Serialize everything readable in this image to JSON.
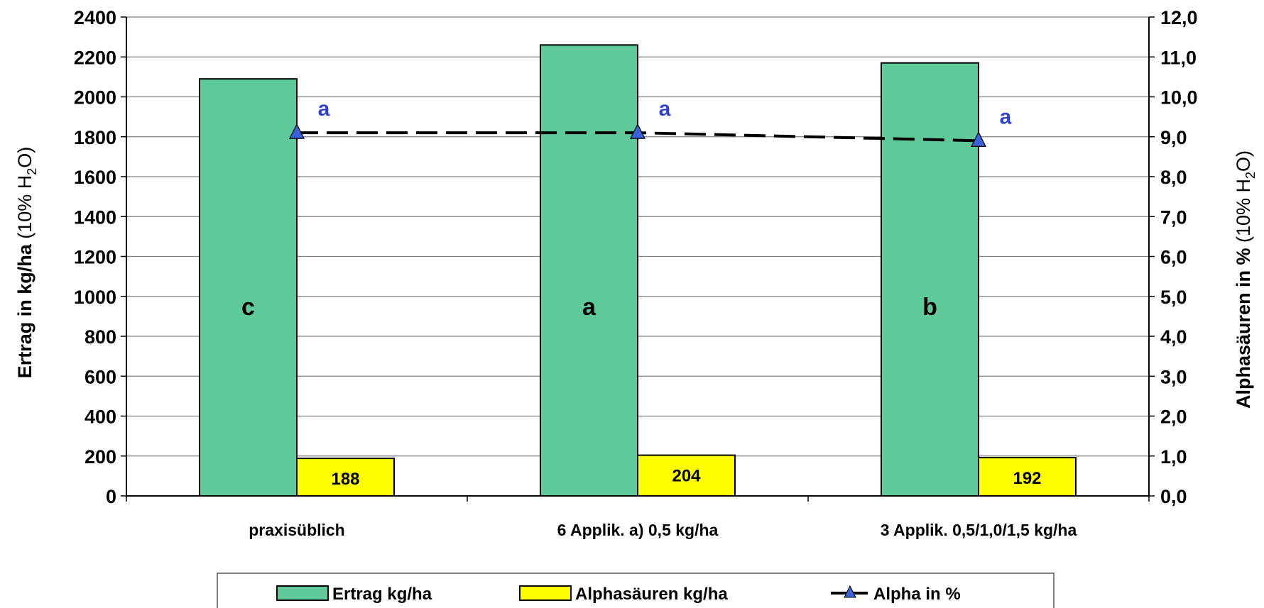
{
  "chart_data": {
    "type": "bar",
    "categories": [
      "praxisüblich",
      "6 Applik. a) 0,5 kg/ha",
      "3 Applik. 0,5/1,0/1,5 kg/ha"
    ],
    "series": [
      {
        "name": "Ertrag kg/ha",
        "type": "bar",
        "axis": "left",
        "values": [
          2090,
          2260,
          2170
        ],
        "color": "#5fc99a",
        "bar_letters": [
          "c",
          "a",
          "b"
        ]
      },
      {
        "name": "Alphasäuren kg/ha",
        "type": "bar",
        "axis": "left",
        "values": [
          188,
          204,
          192
        ],
        "color": "#ffff00",
        "data_labels": [
          "188",
          "204",
          "192"
        ]
      },
      {
        "name": "Alpha in %",
        "type": "line",
        "axis": "right",
        "values": [
          9.1,
          9.1,
          8.9
        ],
        "color": "#000000",
        "marker_color": "#3a62d6",
        "line_style": "dashed",
        "point_letters": [
          "a",
          "a",
          "a"
        ]
      }
    ],
    "y_left": {
      "title_bold": "Ertrag in kg/ha",
      "title_normal_pre": "(10% H",
      "title_sub": "2",
      "title_normal_post": "O)",
      "ylim": [
        0,
        2400
      ],
      "ticks": [
        "0",
        "200",
        "400",
        "600",
        "800",
        "1000",
        "1200",
        "1400",
        "1600",
        "1800",
        "2000",
        "2200",
        "2400"
      ]
    },
    "y_right": {
      "title_bold": "Alphasäuren in %",
      "title_normal_pre": "(10% H",
      "title_sub": "2",
      "title_normal_post": "O)",
      "ylim": [
        0,
        12
      ],
      "ticks": [
        "0,0",
        "1,0",
        "2,0",
        "3,0",
        "4,0",
        "5,0",
        "6,0",
        "7,0",
        "8,0",
        "9,0",
        "10,0",
        "11,0",
        "12,0"
      ]
    },
    "grid": true,
    "legend": {
      "placement": "bottom",
      "entries": [
        "Ertrag kg/ha",
        "Alphasäuren kg/ha",
        "Alpha in %"
      ]
    }
  }
}
